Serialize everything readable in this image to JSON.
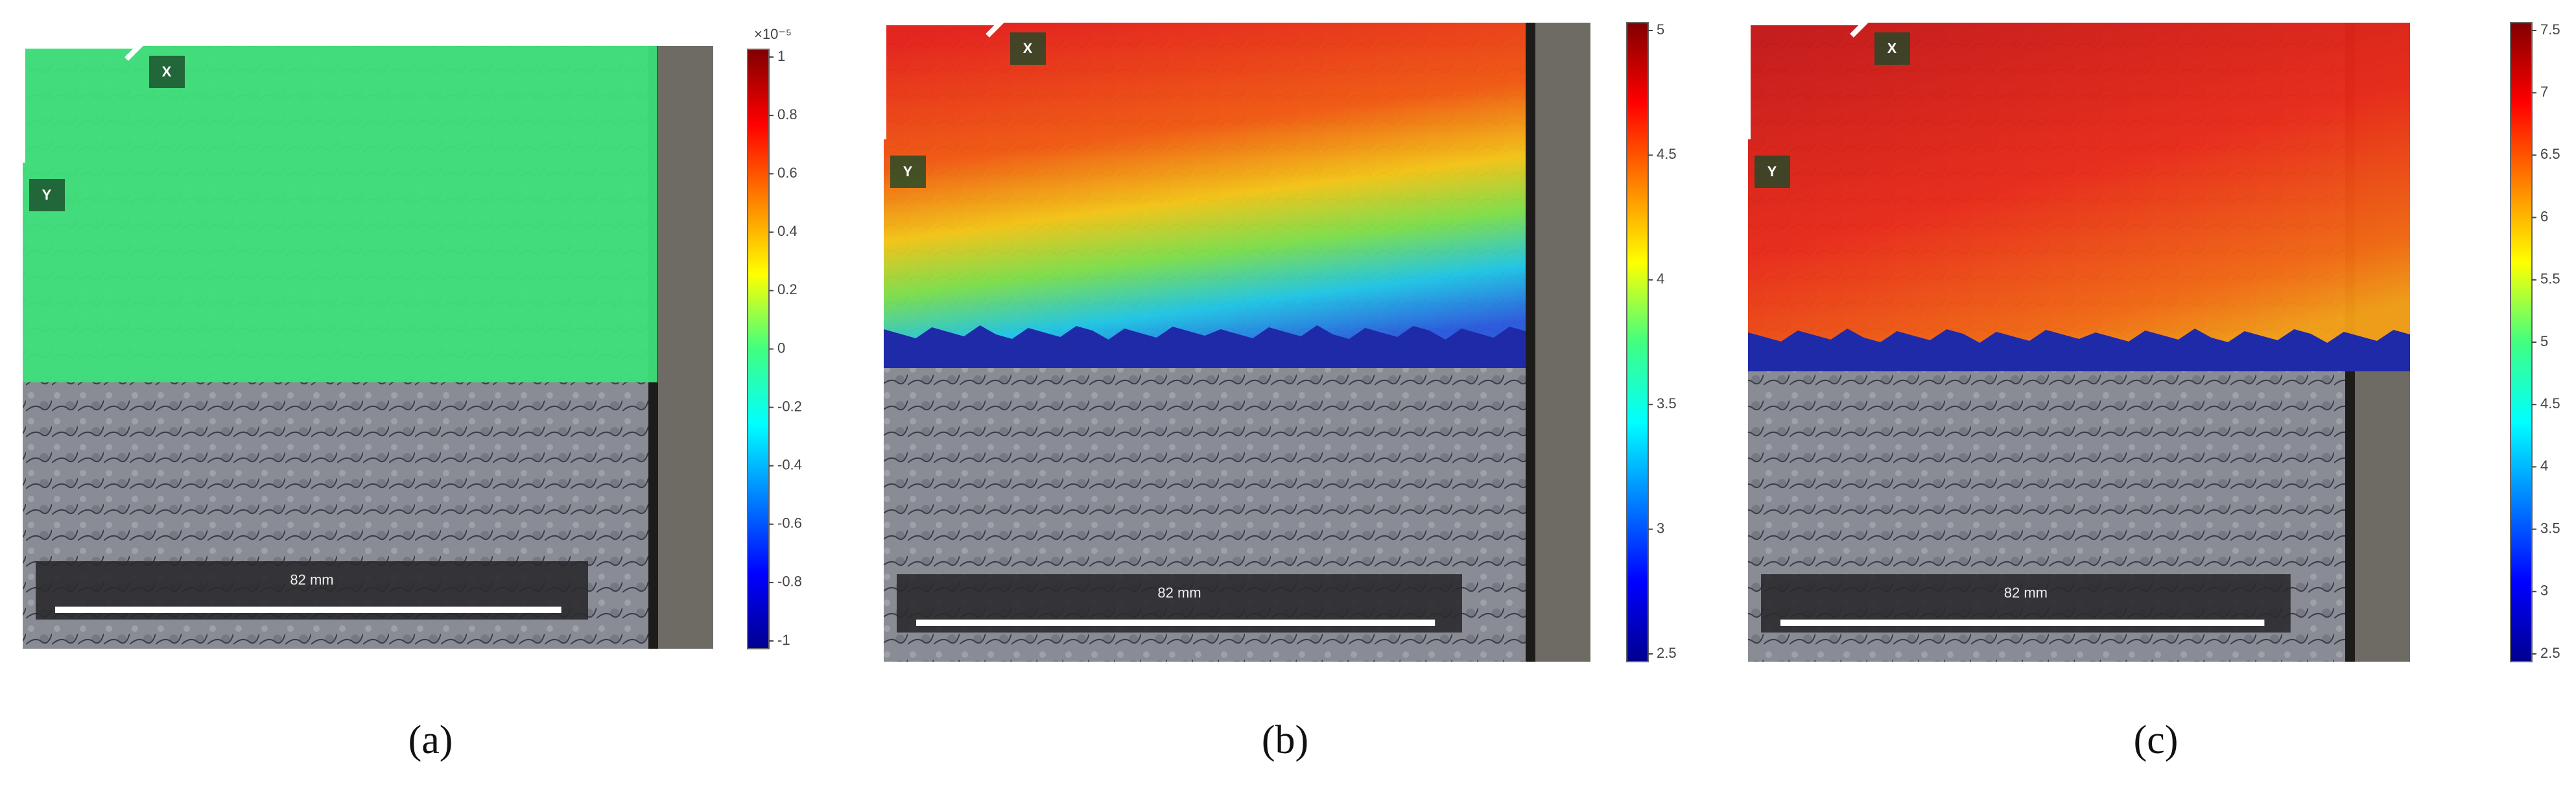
{
  "panels": [
    {
      "caption": "(a)",
      "x_label": "X",
      "y_label": "Y",
      "scale_label": "82 mm",
      "colorbar_exponent": "×10⁻⁵",
      "colorbar_ticks": [
        "1",
        "0.8",
        "0.6",
        "0.4",
        "0.2",
        "0",
        "-0.2",
        "-0.4",
        "-0.6",
        "-0.8",
        "-1"
      ]
    },
    {
      "caption": "(b)",
      "x_label": "X",
      "y_label": "Y",
      "scale_label": "82 mm",
      "colorbar_ticks": [
        "5",
        "4.5",
        "4",
        "3.5",
        "3",
        "2.5"
      ]
    },
    {
      "caption": "(c)",
      "x_label": "X",
      "y_label": "Y",
      "scale_label": "82 mm",
      "colorbar_ticks": [
        "7.5",
        "7",
        "6.5",
        "6",
        "5.5",
        "5",
        "4.5",
        "4",
        "3.5",
        "3",
        "2.5"
      ]
    }
  ]
}
